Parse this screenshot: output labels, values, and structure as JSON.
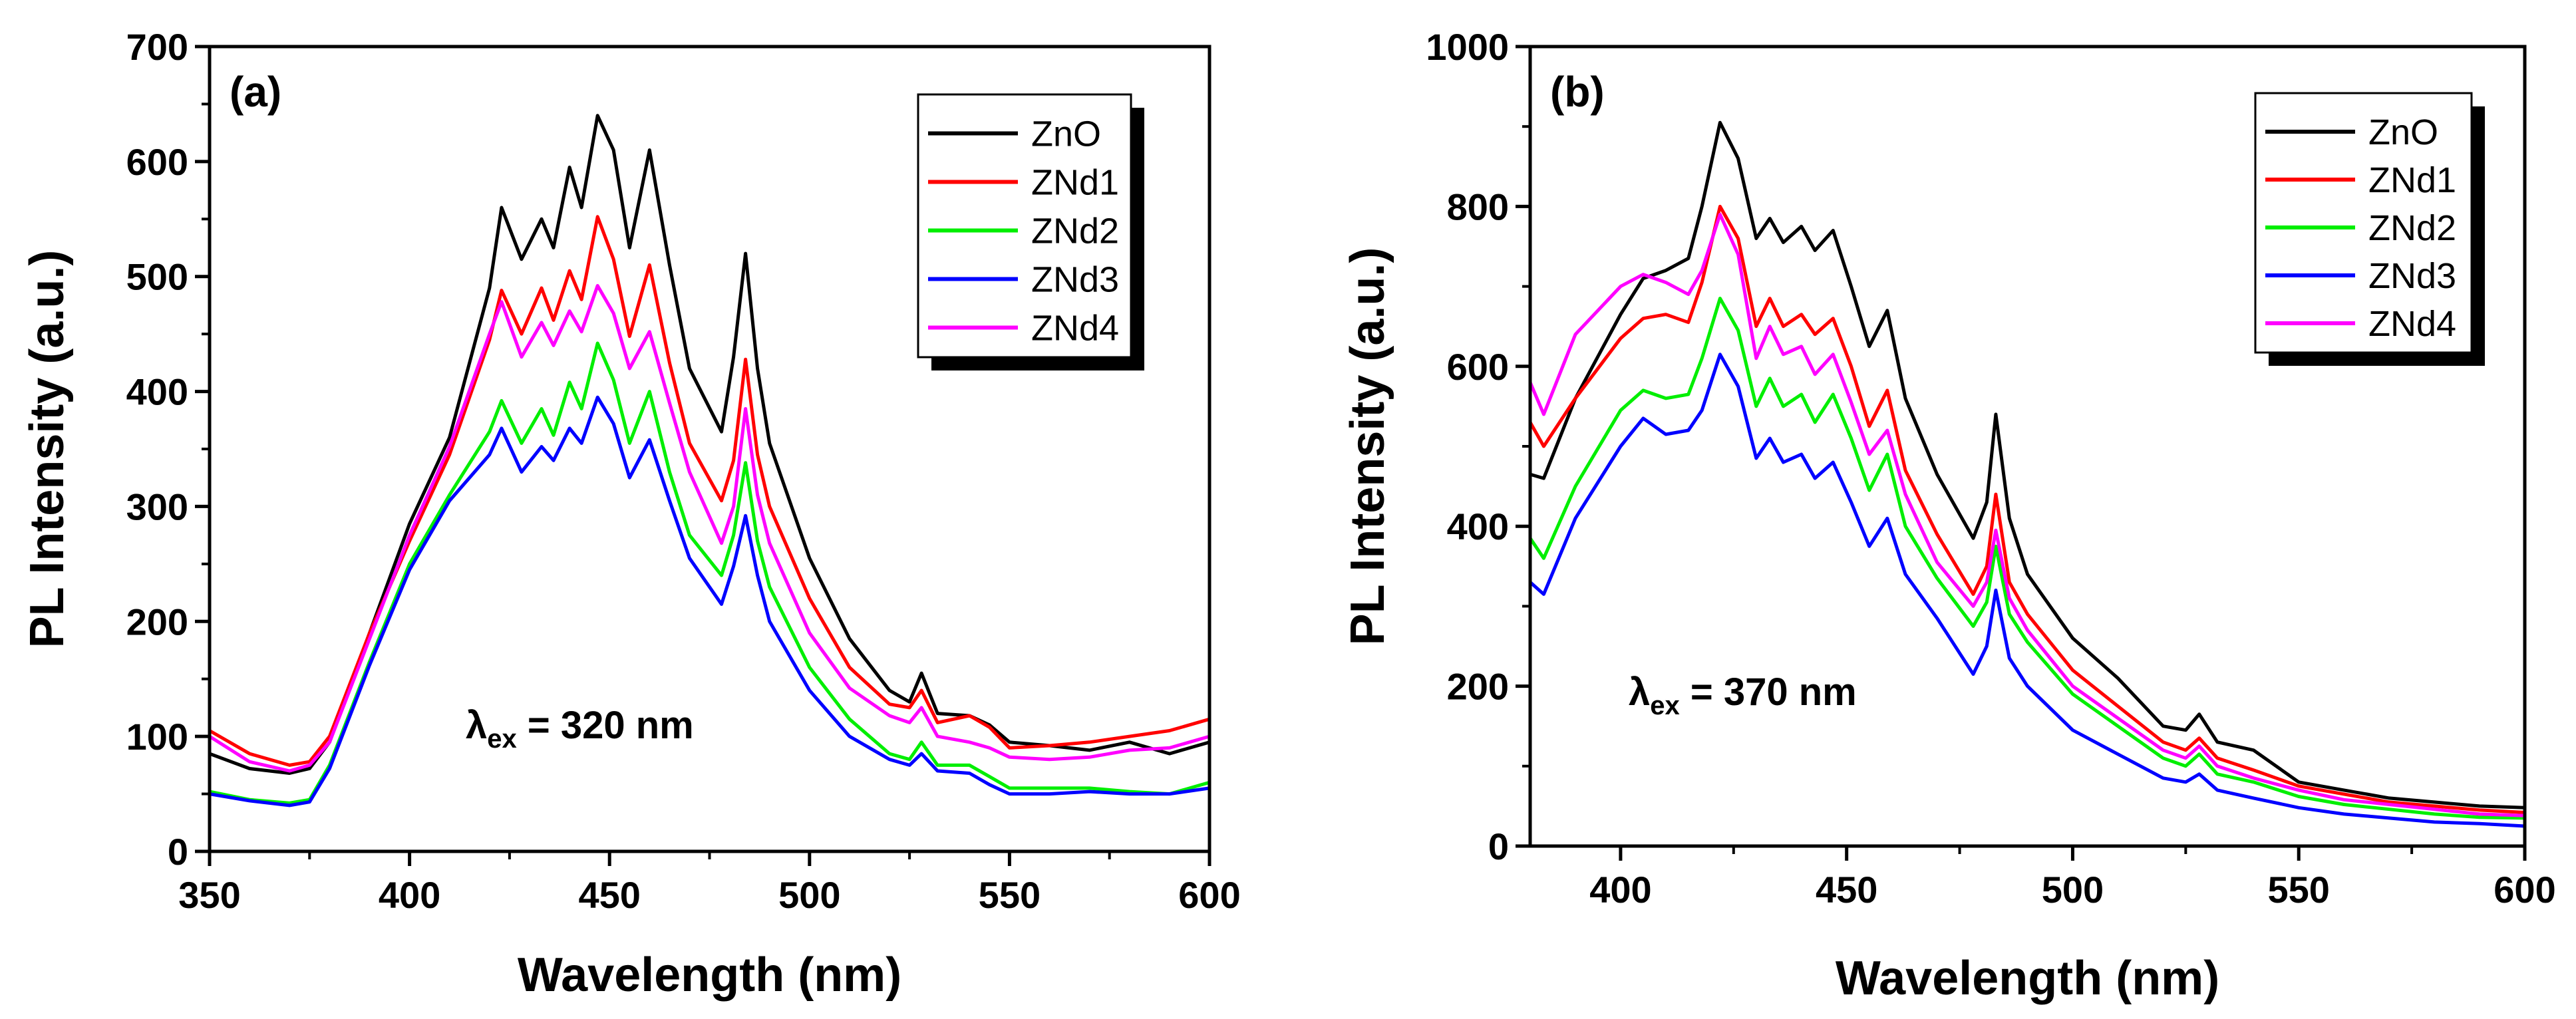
{
  "chart_data": [
    {
      "type": "line",
      "panel_label": "(a)",
      "xlabel": "Wavelength (nm)",
      "ylabel": "PL Intensity (a.u.)",
      "xlim": [
        350,
        600
      ],
      "ylim": [
        0,
        700
      ],
      "xticks": [
        "350",
        "400",
        "450",
        "500",
        "550",
        "600"
      ],
      "yticks": [
        "0",
        "100",
        "200",
        "300",
        "400",
        "500",
        "600",
        "700"
      ],
      "annotation": {
        "lambda": "λ",
        "sub": "ex",
        "text": " = 320 nm"
      },
      "legend_position": "top-right",
      "x": [
        350,
        360,
        370,
        375,
        380,
        390,
        400,
        410,
        420,
        423,
        428,
        433,
        436,
        440,
        443,
        447,
        451,
        455,
        460,
        465,
        470,
        478,
        481,
        484,
        487,
        490,
        500,
        510,
        520,
        525,
        528,
        532,
        540,
        545,
        550,
        560,
        570,
        580,
        590,
        600
      ],
      "series": [
        {
          "name": "ZnO",
          "color": "#000000",
          "values": [
            85,
            72,
            68,
            72,
            95,
            190,
            285,
            360,
            490,
            560,
            515,
            550,
            525,
            595,
            560,
            640,
            610,
            525,
            610,
            510,
            420,
            365,
            430,
            520,
            420,
            355,
            255,
            185,
            140,
            130,
            155,
            120,
            118,
            110,
            95,
            92,
            88,
            95,
            85,
            95
          ]
        },
        {
          "name": "ZNd1",
          "color": "#ff0000",
          "values": [
            105,
            85,
            75,
            78,
            100,
            190,
            270,
            345,
            445,
            488,
            450,
            490,
            462,
            505,
            480,
            552,
            515,
            448,
            510,
            425,
            355,
            305,
            340,
            428,
            345,
            300,
            220,
            160,
            128,
            125,
            140,
            112,
            118,
            108,
            90,
            92,
            95,
            100,
            105,
            115
          ]
        },
        {
          "name": "ZNd2",
          "color": "#00ee00",
          "values": [
            52,
            45,
            42,
            45,
            75,
            165,
            250,
            310,
            365,
            392,
            355,
            385,
            362,
            408,
            385,
            442,
            410,
            355,
            400,
            330,
            275,
            240,
            275,
            338,
            270,
            230,
            160,
            115,
            85,
            80,
            95,
            75,
            75,
            65,
            55,
            55,
            55,
            52,
            50,
            60
          ]
        },
        {
          "name": "ZNd3",
          "color": "#0000ff",
          "values": [
            50,
            44,
            40,
            43,
            72,
            162,
            245,
            305,
            345,
            368,
            330,
            352,
            340,
            368,
            355,
            395,
            372,
            325,
            358,
            305,
            255,
            215,
            248,
            292,
            240,
            200,
            140,
            100,
            80,
            75,
            85,
            70,
            68,
            58,
            50,
            50,
            52,
            50,
            50,
            55
          ]
        },
        {
          "name": "ZNd4",
          "color": "#ff00ff",
          "values": [
            100,
            78,
            70,
            75,
            95,
            185,
            275,
            352,
            450,
            478,
            430,
            460,
            440,
            470,
            452,
            492,
            468,
            420,
            452,
            390,
            330,
            268,
            300,
            385,
            310,
            268,
            190,
            142,
            118,
            112,
            125,
            100,
            95,
            90,
            82,
            80,
            82,
            88,
            90,
            100
          ]
        }
      ]
    },
    {
      "type": "line",
      "panel_label": "(b)",
      "xlabel": "Wavelength (nm)",
      "ylabel": "PL Intensity (a.u.)",
      "xlim": [
        380,
        600
      ],
      "ylim": [
        0,
        1000
      ],
      "xticks": [
        "400",
        "450",
        "500",
        "550",
        "600"
      ],
      "yticks": [
        "0",
        "200",
        "400",
        "600",
        "800",
        "1000"
      ],
      "annotation": {
        "lambda": "λ",
        "sub": "ex",
        "text": " = 370 nm"
      },
      "legend_position": "top-right",
      "x": [
        380,
        383,
        390,
        400,
        405,
        410,
        415,
        418,
        422,
        426,
        430,
        433,
        436,
        440,
        443,
        447,
        451,
        455,
        459,
        463,
        470,
        478,
        481,
        483,
        486,
        490,
        500,
        510,
        520,
        525,
        528,
        532,
        540,
        550,
        560,
        570,
        580,
        590,
        600
      ],
      "series": [
        {
          "name": "ZnO",
          "color": "#000000",
          "values": [
            465,
            460,
            560,
            665,
            710,
            720,
            735,
            800,
            905,
            860,
            760,
            785,
            755,
            775,
            745,
            770,
            700,
            625,
            670,
            560,
            465,
            385,
            430,
            540,
            410,
            340,
            260,
            210,
            150,
            145,
            165,
            130,
            120,
            80,
            70,
            60,
            55,
            50,
            48
          ]
        },
        {
          "name": "ZNd1",
          "color": "#ff0000",
          "values": [
            530,
            500,
            560,
            635,
            660,
            665,
            655,
            705,
            800,
            760,
            650,
            685,
            650,
            665,
            640,
            660,
            600,
            525,
            570,
            470,
            390,
            315,
            350,
            440,
            330,
            290,
            220,
            175,
            130,
            120,
            135,
            110,
            95,
            75,
            65,
            55,
            50,
            45,
            42
          ]
        },
        {
          "name": "ZNd2",
          "color": "#00ee00",
          "values": [
            385,
            360,
            450,
            545,
            570,
            560,
            565,
            610,
            685,
            645,
            550,
            585,
            550,
            565,
            530,
            565,
            510,
            445,
            490,
            400,
            335,
            275,
            305,
            375,
            290,
            255,
            190,
            150,
            110,
            100,
            115,
            90,
            80,
            62,
            52,
            46,
            40,
            36,
            35
          ]
        },
        {
          "name": "ZNd3",
          "color": "#0000ff",
          "values": [
            330,
            315,
            410,
            500,
            535,
            515,
            520,
            545,
            615,
            575,
            485,
            510,
            480,
            490,
            460,
            480,
            430,
            375,
            410,
            340,
            285,
            215,
            250,
            320,
            235,
            200,
            145,
            115,
            85,
            80,
            90,
            70,
            60,
            48,
            40,
            35,
            30,
            28,
            25
          ]
        },
        {
          "name": "ZNd4",
          "color": "#ff00ff",
          "values": [
            580,
            540,
            640,
            700,
            715,
            705,
            690,
            720,
            790,
            740,
            610,
            650,
            615,
            625,
            590,
            615,
            555,
            490,
            520,
            440,
            355,
            300,
            330,
            395,
            310,
            270,
            200,
            160,
            120,
            110,
            125,
            100,
            85,
            70,
            58,
            52,
            46,
            40,
            38
          ]
        }
      ]
    }
  ]
}
